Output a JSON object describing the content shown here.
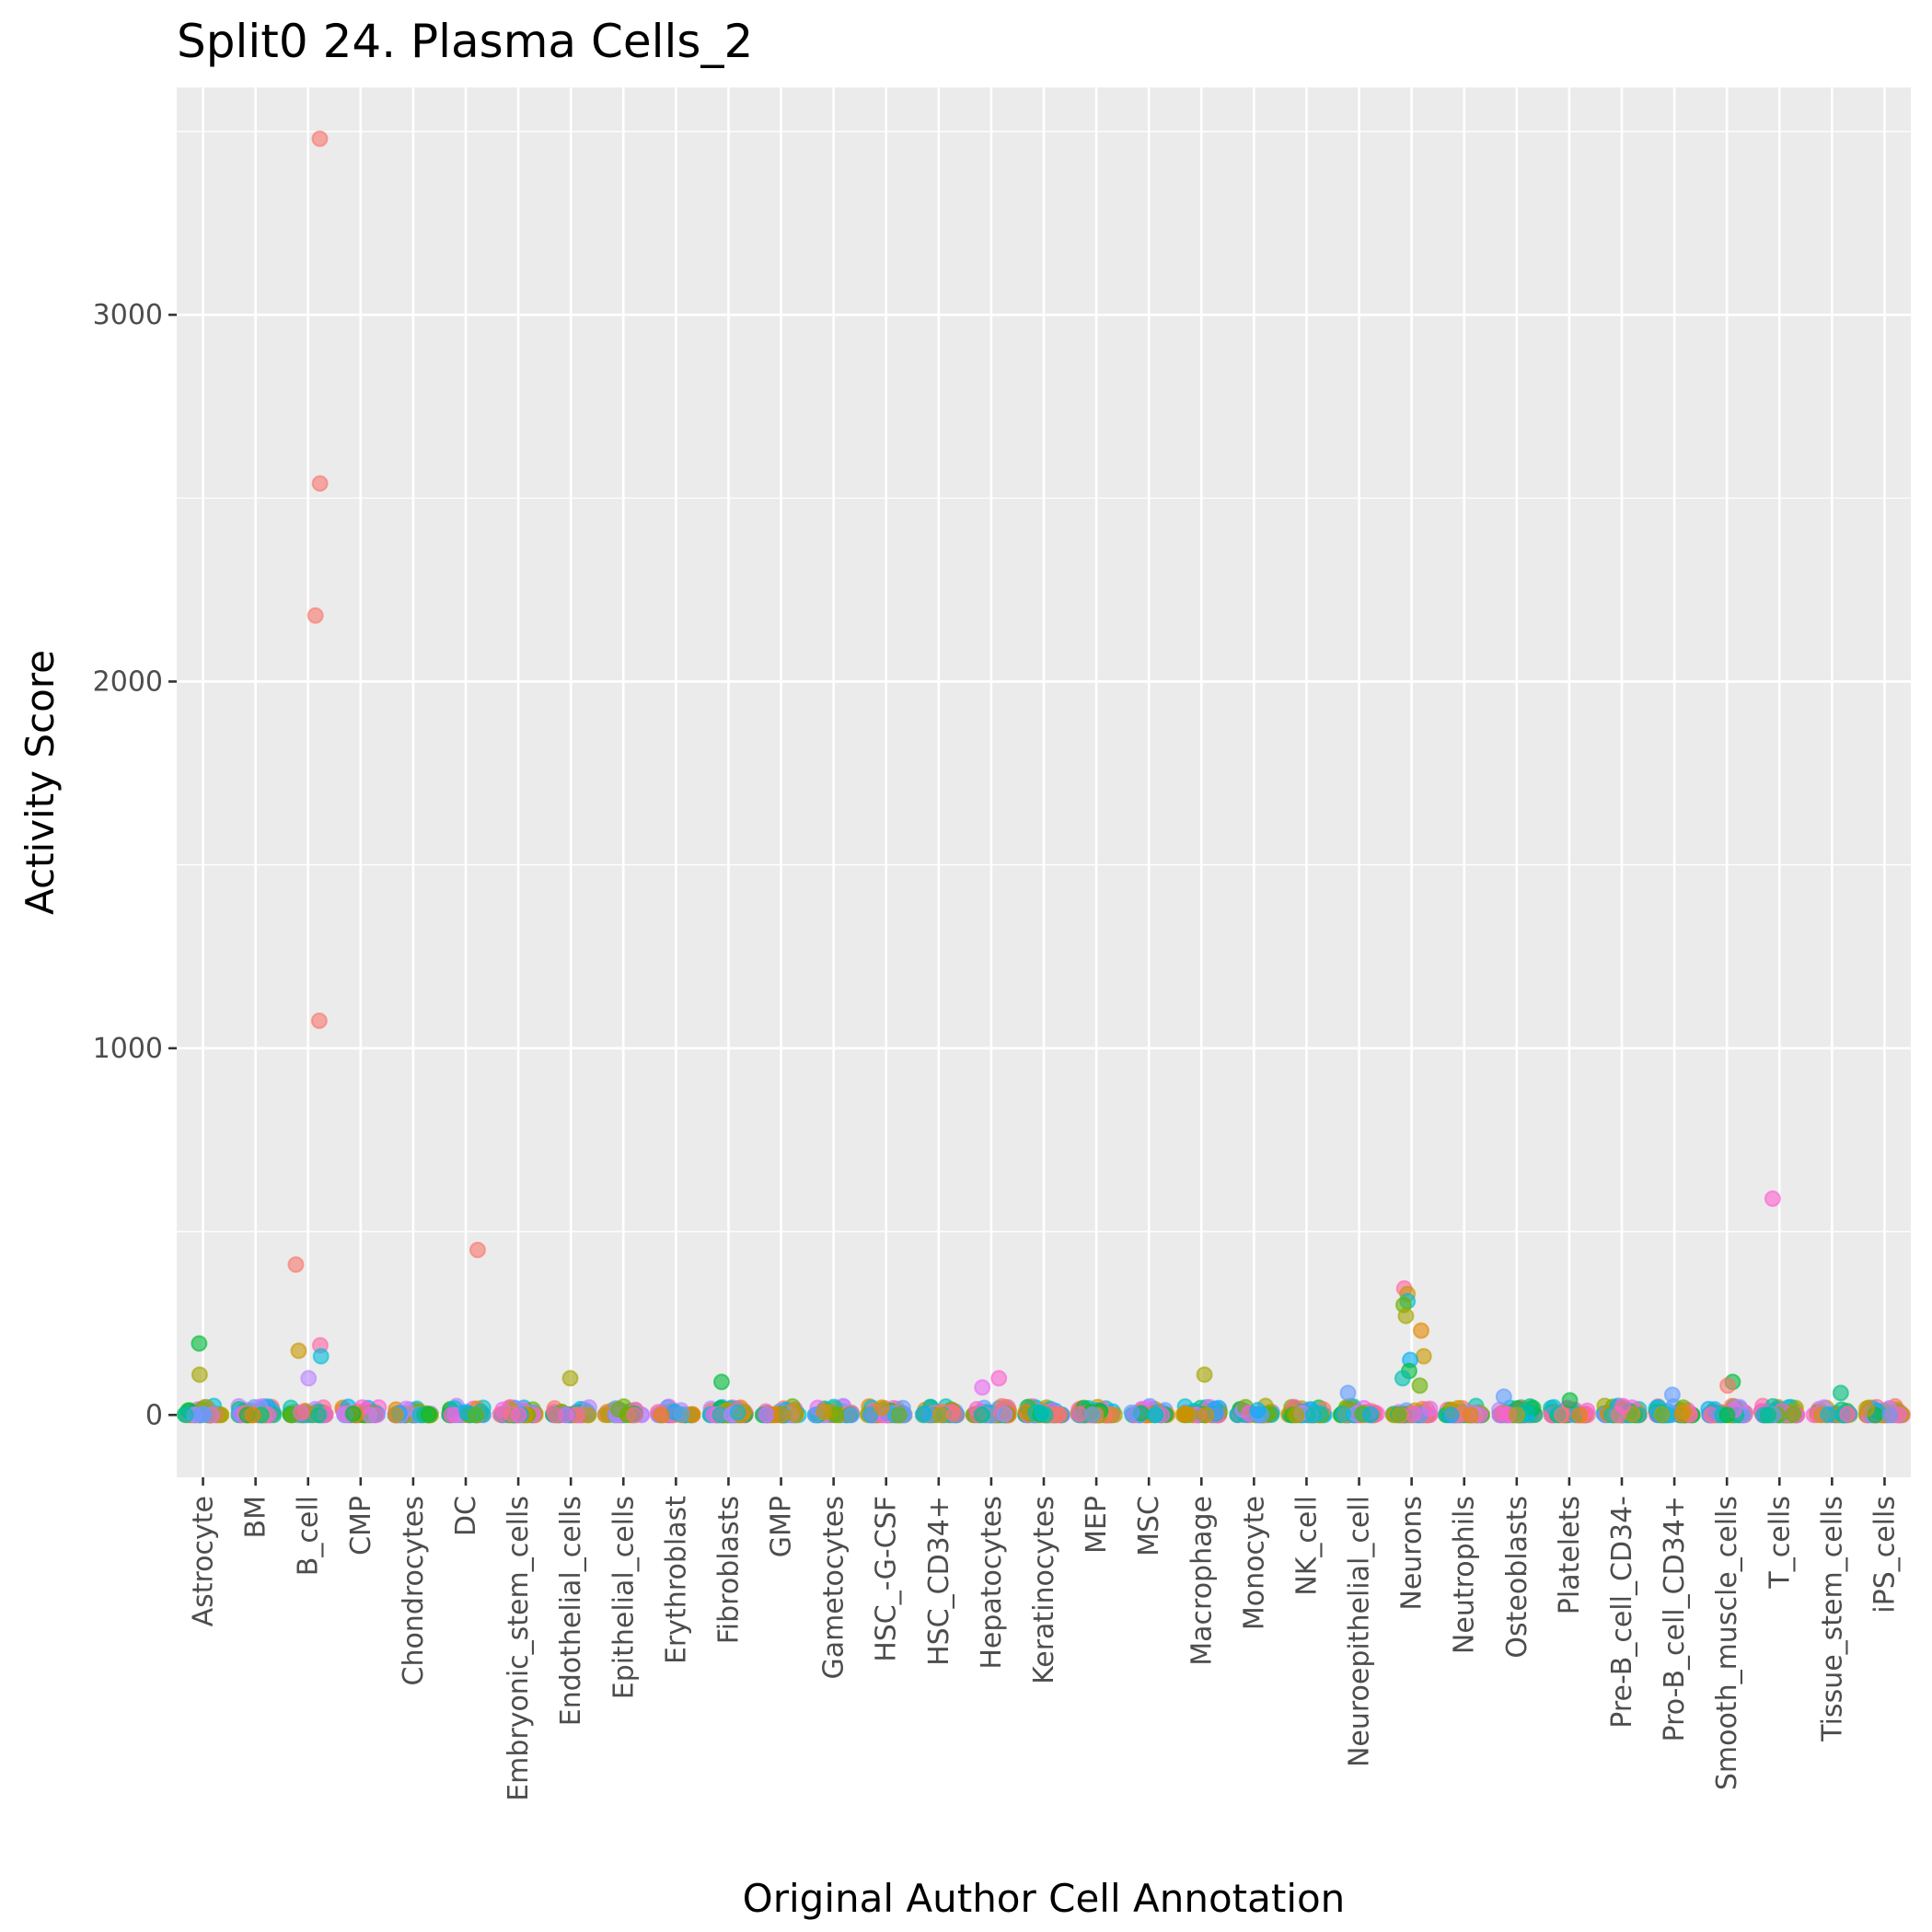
{
  "chart_data": {
    "type": "scatter",
    "subtype": "jitter-strip",
    "title": "Split0 24. Plasma Cells_2",
    "xlabel": "Original Author Cell Annotation",
    "ylabel": "Activity Score",
    "ylim": [
      -170,
      3620
    ],
    "yticks": [
      0,
      1000,
      2000,
      3000
    ],
    "grid": true,
    "legend": "none",
    "categories": [
      "Astrocyte",
      "BM",
      "B_cell",
      "CMP",
      "Chondrocytes",
      "DC",
      "Embryonic_stem_cells",
      "Endothelial_cells",
      "Epithelial_cells",
      "Erythroblast",
      "Fibroblasts",
      "GMP",
      "Gametocytes",
      "HSC_-G-CSF",
      "HSC_CD34+",
      "Hepatocytes",
      "Keratinocytes",
      "MEP",
      "MSC",
      "Macrophage",
      "Monocyte",
      "NK_cell",
      "Neuroepithelial_cell",
      "Neurons",
      "Neutrophils",
      "Osteoblasts",
      "Platelets",
      "Pre-B_cell_CD34-",
      "Pro-B_cell_CD34+",
      "Smooth_muscle_cells",
      "T_cells",
      "Tissue_stem_cells",
      "iPS_cells"
    ],
    "medians": [
      0,
      0,
      0,
      0,
      0,
      0,
      0,
      0,
      0,
      0,
      0,
      0,
      0,
      0,
      0,
      0,
      0,
      0,
      0,
      0,
      0,
      0,
      0,
      0,
      0,
      0,
      0,
      0,
      0,
      0,
      0,
      0,
      0
    ],
    "palette": [
      "#F8766D",
      "#E58700",
      "#C99800",
      "#A3A500",
      "#6BB100",
      "#00BA38",
      "#00BF7D",
      "#00C0AF",
      "#00BCD8",
      "#00B0F6",
      "#619CFF",
      "#B983FF",
      "#E76BF3",
      "#FD61D1",
      "#FF67A4"
    ],
    "notable_points": [
      {
        "category": "B_cell",
        "value": 3480,
        "color": "#F8766D"
      },
      {
        "category": "B_cell",
        "value": 2540,
        "color": "#F8766D"
      },
      {
        "category": "B_cell",
        "value": 2180,
        "color": "#F8766D"
      },
      {
        "category": "B_cell",
        "value": 1075,
        "color": "#F8766D"
      },
      {
        "category": "B_cell",
        "value": 410,
        "color": "#F8766D"
      },
      {
        "category": "B_cell",
        "value": 190,
        "color": "#FF67A4"
      },
      {
        "category": "B_cell",
        "value": 175,
        "color": "#C99800"
      },
      {
        "category": "B_cell",
        "value": 160,
        "color": "#00BCD8"
      },
      {
        "category": "B_cell",
        "value": 100,
        "color": "#B983FF"
      },
      {
        "category": "DC",
        "value": 450,
        "color": "#F8766D"
      },
      {
        "category": "T_cells",
        "value": 590,
        "color": "#FD61D1"
      },
      {
        "category": "Astrocyte",
        "value": 195,
        "color": "#00BA38"
      },
      {
        "category": "Astrocyte",
        "value": 110,
        "color": "#A3A500"
      },
      {
        "category": "Endothelial_cells",
        "value": 100,
        "color": "#A3A500"
      },
      {
        "category": "Fibroblasts",
        "value": 90,
        "color": "#00BA38"
      },
      {
        "category": "Hepatocytes",
        "value": 100,
        "color": "#FD61D1"
      },
      {
        "category": "Hepatocytes",
        "value": 75,
        "color": "#E76BF3"
      },
      {
        "category": "Macrophage",
        "value": 110,
        "color": "#A3A500"
      },
      {
        "category": "Neurons",
        "value": 345,
        "color": "#FF67A4"
      },
      {
        "category": "Neurons",
        "value": 330,
        "color": "#C99800"
      },
      {
        "category": "Neurons",
        "value": 310,
        "color": "#00BCD8"
      },
      {
        "category": "Neurons",
        "value": 300,
        "color": "#6BB100"
      },
      {
        "category": "Neurons",
        "value": 270,
        "color": "#A3A500"
      },
      {
        "category": "Neurons",
        "value": 230,
        "color": "#E58700"
      },
      {
        "category": "Neurons",
        "value": 160,
        "color": "#C99800"
      },
      {
        "category": "Neurons",
        "value": 150,
        "color": "#00B0F6"
      },
      {
        "category": "Neurons",
        "value": 120,
        "color": "#00BA38"
      },
      {
        "category": "Neurons",
        "value": 100,
        "color": "#00C0AF"
      },
      {
        "category": "Neurons",
        "value": 80,
        "color": "#6BB100"
      },
      {
        "category": "Smooth_muscle_cells",
        "value": 90,
        "color": "#00BA38"
      },
      {
        "category": "Smooth_muscle_cells",
        "value": 80,
        "color": "#F8766D"
      },
      {
        "category": "Neuroepithelial_cell",
        "value": 60,
        "color": "#619CFF"
      },
      {
        "category": "Tissue_stem_cells",
        "value": 60,
        "color": "#00BF7D"
      },
      {
        "category": "Pro-B_cell_CD34+",
        "value": 55,
        "color": "#619CFF"
      },
      {
        "category": "Osteoblasts",
        "value": 50,
        "color": "#619CFF"
      },
      {
        "category": "Platelets",
        "value": 40,
        "color": "#00BA38"
      }
    ]
  }
}
